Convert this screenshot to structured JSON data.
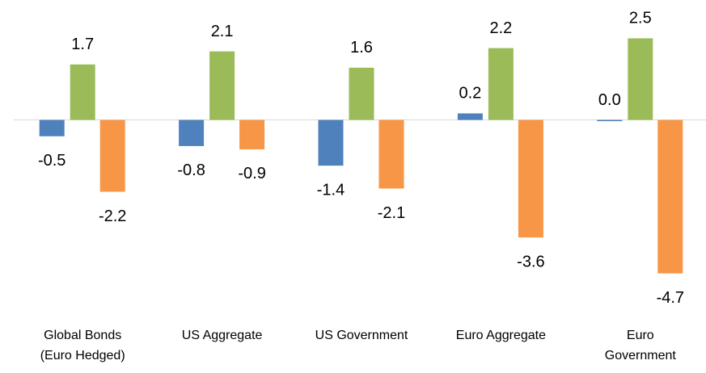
{
  "chart_data": {
    "type": "bar",
    "categories": [
      "Global Bonds\n(Euro Hedged)",
      "US Aggregate",
      "US Government",
      "Euro Aggregate",
      "Euro\nGovernment"
    ],
    "series": [
      {
        "color": "#4f81bd",
        "values": [
          -0.5,
          -0.8,
          -1.4,
          0.2,
          0.0
        ],
        "value_labels": [
          "-0.5",
          "-0.8",
          "-1.4",
          "0.2",
          "0.0"
        ]
      },
      {
        "color": "#9bbb59",
        "values": [
          1.7,
          2.1,
          1.6,
          2.2,
          2.5
        ]
      },
      {
        "color": "#f79646",
        "values": [
          -2.2,
          -0.9,
          -2.1,
          -3.6,
          -4.7
        ]
      }
    ],
    "ylim": [
      -5.5,
      3.5
    ]
  }
}
